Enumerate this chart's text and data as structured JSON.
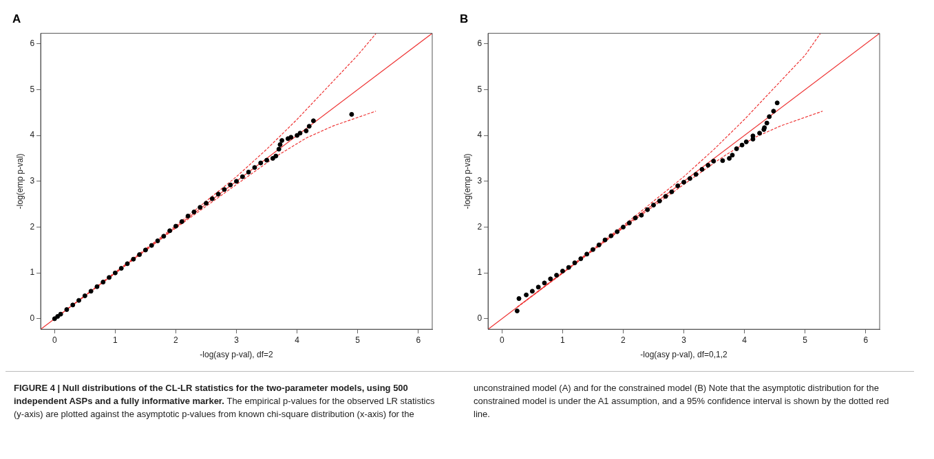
{
  "chart_data": [
    {
      "type": "scatter",
      "title": "A",
      "xlabel": "-log(asy p-val), df=2",
      "ylabel": "-log(emp p-val)",
      "xlim": [
        -0.23,
        6.23
      ],
      "ylim": [
        -0.23,
        6.23
      ],
      "xticks": [
        0,
        1,
        2,
        3,
        4,
        5,
        6
      ],
      "yticks": [
        0,
        1,
        2,
        3,
        4,
        5,
        6
      ],
      "grid": false,
      "legend": false,
      "annotations": [
        "FIGURE 4 | Null distributions of the CL-LR statistics for the two-parameter models, using 500 independent ASPs and a fully informative marker.",
        "The empirical p-values for the observed LR statistics (y-axis) are plotted against the asymptotic p-values from known chi-square distribution (x-axis) for the unconstrained model (A) and for the constrained model (B) Note that the asymptotic distribution for the constrained model is under the A1 assumption, and a 95% confidence interval is shown by the dotted red line."
      ],
      "series": [
        {
          "type": "line",
          "color": "#ee3333",
          "line_style": "solid",
          "x": [
            -0.23,
            6.23
          ],
          "values": [
            -0.23,
            6.23
          ]
        },
        {
          "type": "line",
          "color": "#ee3333",
          "line_style": "dashed",
          "x": [
            0,
            2,
            3,
            3.5,
            4,
            4.5,
            5,
            5.3
          ],
          "values": [
            0,
            2.03,
            3.1,
            3.7,
            4.35,
            5.05,
            5.75,
            6.22
          ]
        },
        {
          "type": "line",
          "color": "#ee3333",
          "line_style": "dashed",
          "x": [
            0,
            2,
            3,
            3.5,
            3.7,
            4.16,
            4.6,
            5.3
          ],
          "values": [
            0,
            1.98,
            2.93,
            3.4,
            3.58,
            3.95,
            4.21,
            4.53
          ]
        },
        {
          "type": "scatter",
          "marker": "circle",
          "color": "#000000",
          "x": [
            0,
            0.05,
            0.1,
            0.2,
            0.3,
            0.4,
            0.5,
            0.6,
            0.7,
            0.8,
            0.9,
            1.0,
            1.1,
            1.2,
            1.3,
            1.4,
            1.5,
            1.6,
            1.7,
            1.8,
            1.9,
            2.0,
            2.1,
            2.2,
            2.3,
            2.4,
            2.5,
            2.6,
            2.7,
            2.8,
            2.9,
            3.0,
            3.1,
            3.2,
            3.3,
            3.4,
            3.5,
            3.6,
            3.65,
            3.7,
            3.72,
            3.75,
            3.85,
            3.9,
            4.0,
            4.05,
            4.15,
            4.2,
            4.27,
            4.9
          ],
          "values": [
            0,
            0.05,
            0.1,
            0.2,
            0.3,
            0.4,
            0.5,
            0.6,
            0.7,
            0.8,
            0.9,
            1.0,
            1.1,
            1.2,
            1.3,
            1.4,
            1.5,
            1.6,
            1.7,
            1.8,
            1.92,
            2.02,
            2.12,
            2.24,
            2.33,
            2.43,
            2.52,
            2.62,
            2.72,
            2.82,
            2.92,
            3.0,
            3.1,
            3.2,
            3.3,
            3.4,
            3.46,
            3.5,
            3.55,
            3.7,
            3.8,
            3.89,
            3.93,
            3.96,
            4.0,
            4.05,
            4.1,
            4.2,
            4.32,
            4.46
          ]
        }
      ]
    },
    {
      "type": "scatter",
      "title": "B",
      "xlabel": "-log(asy p-val), df=0,1,2",
      "ylabel": "-log(emp p-val)",
      "xlim": [
        -0.23,
        6.23
      ],
      "ylim": [
        -0.23,
        6.23
      ],
      "xticks": [
        0,
        1,
        2,
        3,
        4,
        5,
        6
      ],
      "yticks": [
        0,
        1,
        2,
        3,
        4,
        5,
        6
      ],
      "grid": false,
      "legend": false,
      "series": [
        {
          "type": "line",
          "color": "#ee3333",
          "line_style": "solid",
          "x": [
            -0.23,
            6.23
          ],
          "values": [
            -0.23,
            6.23
          ]
        },
        {
          "type": "line",
          "color": "#ee3333",
          "line_style": "dashed",
          "x": [
            0.25,
            2,
            3,
            3.5,
            4,
            4.5,
            5,
            5.25
          ],
          "values": [
            0.25,
            2.03,
            3.1,
            3.7,
            4.35,
            5.05,
            5.75,
            6.22
          ]
        },
        {
          "type": "line",
          "color": "#ee3333",
          "line_style": "dashed",
          "x": [
            0.25,
            2,
            3,
            3.5,
            3.7,
            4.16,
            4.6,
            5.29
          ],
          "values": [
            0.25,
            1.98,
            2.93,
            3.4,
            3.58,
            3.95,
            4.21,
            4.53
          ]
        },
        {
          "type": "scatter",
          "marker": "circle",
          "color": "#000000",
          "x": [
            0.25,
            0.28,
            0.4,
            0.5,
            0.6,
            0.7,
            0.8,
            0.9,
            1.0,
            1.1,
            1.2,
            1.3,
            1.4,
            1.5,
            1.6,
            1.7,
            1.8,
            1.9,
            2.0,
            2.1,
            2.2,
            2.3,
            2.4,
            2.5,
            2.6,
            2.7,
            2.8,
            2.9,
            3.0,
            3.1,
            3.2,
            3.3,
            3.4,
            3.49,
            3.64,
            3.75,
            3.8,
            3.87,
            3.96,
            4.03,
            4.14,
            4.14,
            4.25,
            4.32,
            4.33,
            4.37,
            4.41,
            4.48,
            4.54
          ],
          "values": [
            0.17,
            0.44,
            0.52,
            0.6,
            0.69,
            0.78,
            0.87,
            0.95,
            1.04,
            1.12,
            1.22,
            1.31,
            1.41,
            1.51,
            1.61,
            1.72,
            1.81,
            1.9,
            2.0,
            2.09,
            2.2,
            2.26,
            2.38,
            2.48,
            2.57,
            2.67,
            2.77,
            2.9,
            2.98,
            3.06,
            3.15,
            3.26,
            3.35,
            3.44,
            3.45,
            3.5,
            3.57,
            3.71,
            3.79,
            3.86,
            3.92,
            3.99,
            4.05,
            4.13,
            4.17,
            4.27,
            4.41,
            4.53,
            4.71
          ]
        }
      ]
    }
  ]
}
